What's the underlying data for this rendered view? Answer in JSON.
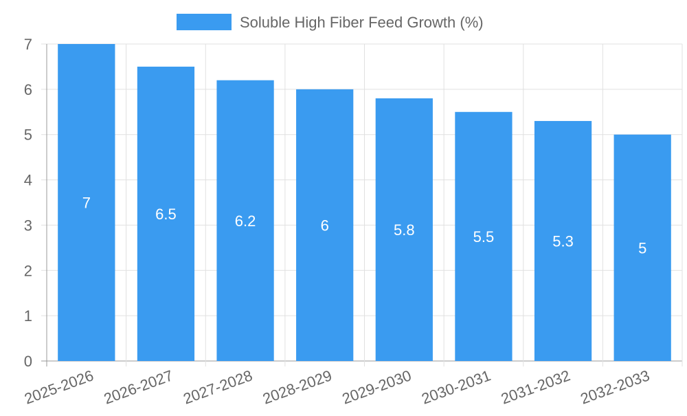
{
  "chart_data": {
    "type": "bar",
    "title": "",
    "legend": {
      "label": "Soluble High Fiber Feed Growth (%)",
      "placement": "top-center"
    },
    "categories": [
      "2025-2026",
      "2026-2027",
      "2027-2028",
      "2028-2029",
      "2029-2030",
      "2030-2031",
      "2031-2032",
      "2032-2033"
    ],
    "values": [
      7,
      6.5,
      6.2,
      6,
      5.8,
      5.5,
      5.3,
      5
    ],
    "value_labels": [
      "7",
      "6.5",
      "6.2",
      "6",
      "5.8",
      "5.5",
      "5.3",
      "5"
    ],
    "y_ticks": [
      "0",
      "1",
      "2",
      "3",
      "4",
      "5",
      "6",
      "7"
    ],
    "ylim": [
      0,
      7
    ],
    "xlabel": "",
    "ylabel": "",
    "grid": true,
    "colors": {
      "bar": "#3a9bf0",
      "grid": "#e0e0e0",
      "axis": "#999999",
      "text": "#666666",
      "label": "#ffffff"
    }
  }
}
